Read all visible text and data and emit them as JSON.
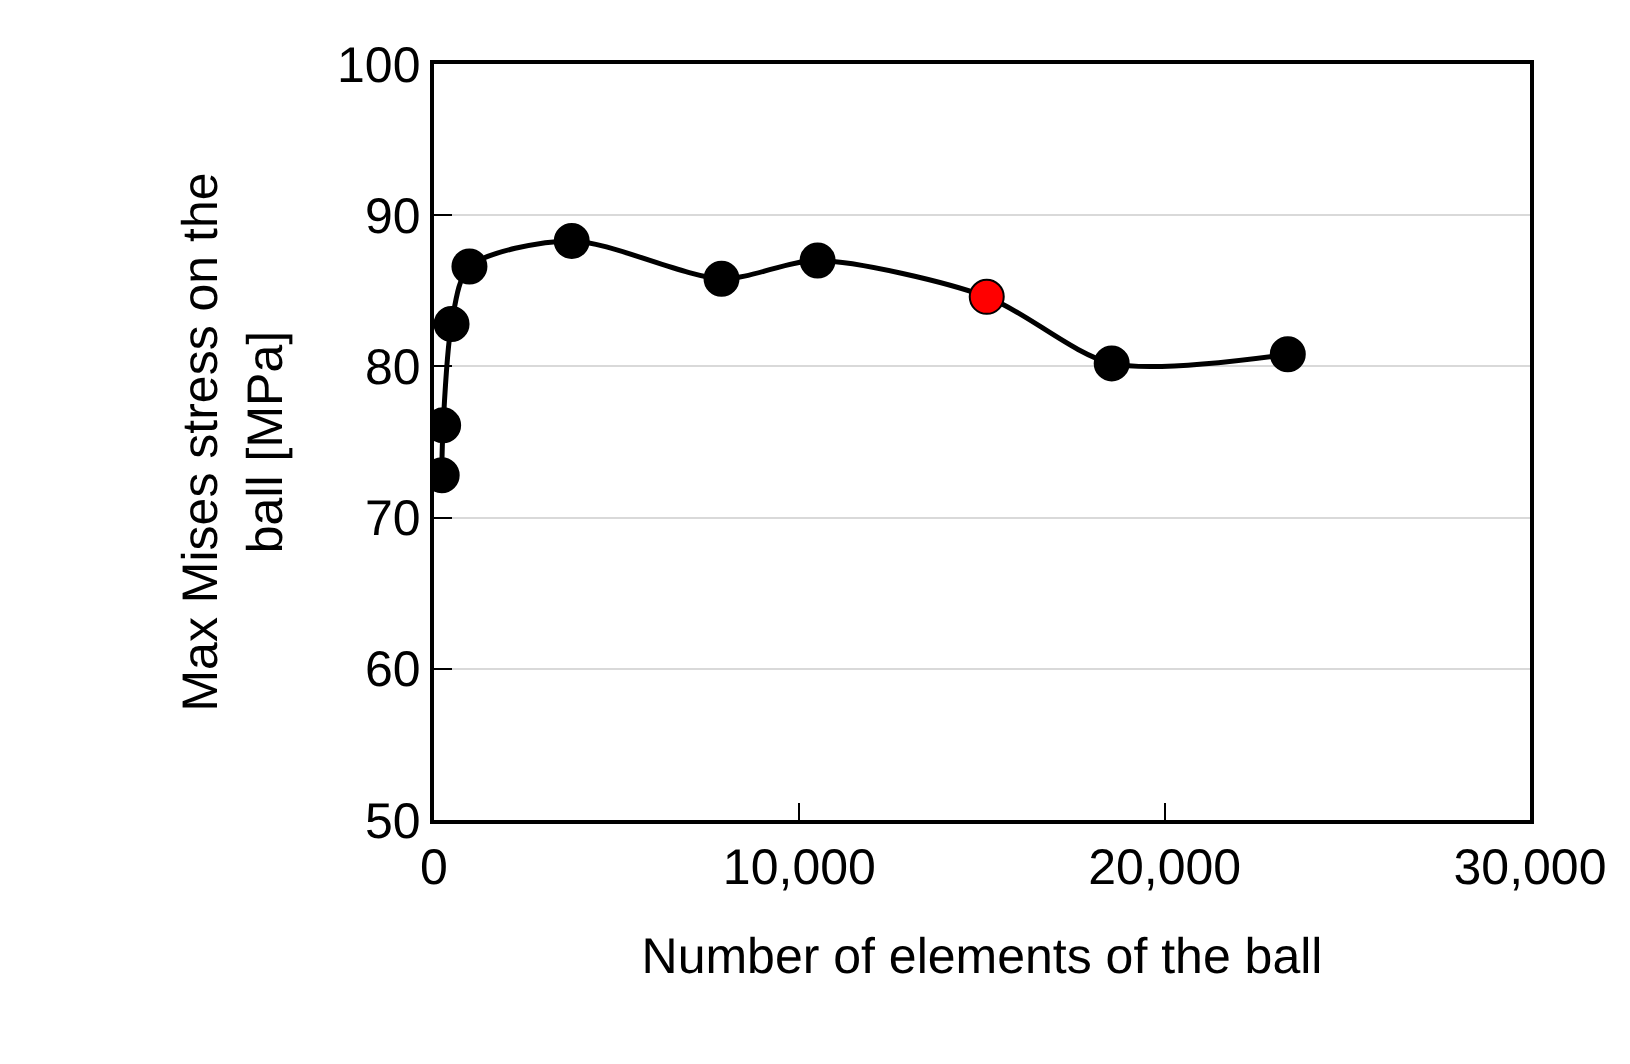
{
  "chart_data": {
    "type": "line",
    "xlabel": "Number of elements of the ball",
    "ylabel": "Max Mises stress on the ball [MPa]",
    "x": [
      210,
      250,
      480,
      970,
      3770,
      7870,
      10500,
      15130,
      18550,
      23370
    ],
    "series": [
      {
        "color": "#000000",
        "colors": [
          "#000000",
          "#000000",
          "#000000",
          "#000000",
          "#000000",
          "#000000",
          "#000000",
          "#ff0000",
          "#000000",
          "#000000"
        ],
        "values": [
          72.8,
          76.1,
          82.8,
          86.6,
          88.3,
          85.8,
          87.0,
          84.6,
          80.2,
          80.8
        ]
      }
    ],
    "xlim": [
      0,
      30000
    ],
    "xticks": [
      {
        "value": 0,
        "label": "0"
      },
      {
        "value": 10000,
        "label": "10,000"
      },
      {
        "value": 20000,
        "label": "20,000"
      },
      {
        "value": 30000,
        "label": "30,000"
      }
    ],
    "ylim": [
      50,
      100
    ],
    "yticks": [
      50,
      60,
      70,
      80,
      90,
      100
    ],
    "grid": "y",
    "marker": "circle",
    "line_style": "solid"
  }
}
